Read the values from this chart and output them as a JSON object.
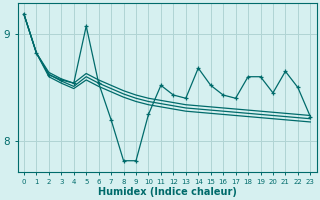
{
  "xlabel": "Humidex (Indice chaleur)",
  "background_color": "#d6f0f0",
  "grid_color": "#b0d4d4",
  "line_color": "#006b6b",
  "x_ticks": [
    0,
    1,
    2,
    3,
    4,
    5,
    6,
    7,
    8,
    9,
    10,
    11,
    12,
    13,
    14,
    15,
    16,
    17,
    18,
    19,
    20,
    21,
    22,
    23
  ],
  "ylim": [
    7.72,
    9.28
  ],
  "y_ticks": [
    8,
    9
  ],
  "line1_y": [
    9.18,
    8.82,
    8.62,
    8.57,
    8.54,
    9.07,
    8.54,
    8.2,
    7.82,
    7.82,
    8.25,
    8.52,
    8.43,
    8.4,
    8.68,
    8.52,
    8.43,
    8.4,
    8.6,
    8.6,
    8.45,
    8.65,
    8.5,
    8.23
  ],
  "line2_y": [
    9.18,
    8.82,
    8.64,
    8.58,
    8.54,
    8.63,
    8.57,
    8.52,
    8.47,
    8.43,
    8.4,
    8.38,
    8.36,
    8.34,
    8.33,
    8.32,
    8.31,
    8.3,
    8.29,
    8.28,
    8.27,
    8.26,
    8.25,
    8.24
  ],
  "line3_y": [
    9.18,
    8.82,
    8.62,
    8.56,
    8.51,
    8.6,
    8.54,
    8.49,
    8.44,
    8.4,
    8.37,
    8.35,
    8.33,
    8.31,
    8.3,
    8.29,
    8.28,
    8.27,
    8.26,
    8.25,
    8.24,
    8.23,
    8.22,
    8.21
  ],
  "line4_y": [
    9.18,
    8.82,
    8.6,
    8.54,
    8.49,
    8.57,
    8.51,
    8.46,
    8.41,
    8.37,
    8.34,
    8.32,
    8.3,
    8.28,
    8.27,
    8.26,
    8.25,
    8.24,
    8.23,
    8.22,
    8.21,
    8.2,
    8.19,
    8.18
  ]
}
